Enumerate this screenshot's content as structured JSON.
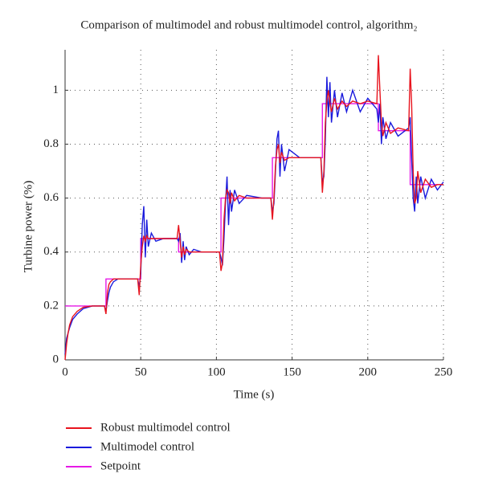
{
  "chart_data": {
    "type": "line",
    "title": "Comparison of multimodel and robust multimodel control, algorithm₂",
    "xlabel": "Time (s)",
    "ylabel": "Turbine power (%)",
    "xlim": [
      0,
      250
    ],
    "ylim": [
      0,
      1.15
    ],
    "xticks": [
      0,
      50,
      100,
      150,
      200,
      250
    ],
    "yticks": [
      0,
      0.2,
      0.4,
      0.6,
      0.8,
      1
    ],
    "grid": true,
    "series": [
      {
        "name": "Robust multimodel control",
        "color": "#e8141e",
        "x": [
          0,
          1,
          2,
          3,
          5,
          8,
          12,
          18,
          26,
          27,
          28,
          29,
          30,
          32,
          35,
          40,
          48,
          49,
          50,
          51,
          52,
          53,
          54,
          55,
          57,
          60,
          65,
          74,
          75,
          76,
          77,
          78,
          79,
          80,
          82,
          85,
          90,
          102,
          103,
          104,
          105,
          106,
          107,
          108,
          109,
          110,
          112,
          115,
          120,
          130,
          136,
          137,
          138,
          139,
          140,
          141,
          142,
          143,
          145,
          148,
          155,
          169,
          170,
          171,
          172,
          173,
          174,
          175,
          176,
          178,
          180,
          183,
          186,
          190,
          195,
          200,
          206,
          207,
          208,
          209,
          210,
          212,
          215,
          220,
          227,
          228,
          229,
          230,
          231,
          232,
          233,
          235,
          238,
          242,
          246,
          250
        ],
        "values": [
          0,
          0.06,
          0.1,
          0.13,
          0.16,
          0.18,
          0.195,
          0.2,
          0.2,
          0.17,
          0.25,
          0.28,
          0.29,
          0.3,
          0.3,
          0.3,
          0.3,
          0.24,
          0.35,
          0.42,
          0.46,
          0.44,
          0.46,
          0.45,
          0.45,
          0.45,
          0.45,
          0.45,
          0.5,
          0.44,
          0.38,
          0.42,
          0.39,
          0.41,
          0.4,
          0.4,
          0.4,
          0.4,
          0.33,
          0.36,
          0.52,
          0.6,
          0.63,
          0.62,
          0.58,
          0.62,
          0.59,
          0.61,
          0.6,
          0.6,
          0.6,
          0.52,
          0.6,
          0.72,
          0.78,
          0.8,
          0.73,
          0.77,
          0.74,
          0.75,
          0.75,
          0.75,
          0.62,
          0.7,
          0.88,
          0.96,
          1.0,
          0.95,
          0.92,
          0.97,
          0.93,
          0.96,
          0.94,
          0.96,
          0.95,
          0.96,
          0.95,
          1.13,
          1.0,
          0.88,
          0.83,
          0.88,
          0.84,
          0.86,
          0.85,
          1.08,
          0.95,
          0.7,
          0.58,
          0.6,
          0.7,
          0.62,
          0.67,
          0.64,
          0.65,
          0.65
        ]
      },
      {
        "name": "Multimodel control",
        "color": "#1a1adc",
        "x": [
          0,
          1,
          2,
          3,
          5,
          8,
          12,
          18,
          26,
          27,
          28,
          29,
          30,
          32,
          35,
          40,
          48,
          49,
          50,
          51,
          52,
          53,
          54,
          55,
          57,
          60,
          65,
          74,
          75,
          76,
          77,
          78,
          79,
          80,
          82,
          85,
          90,
          102,
          103,
          104,
          105,
          106,
          107,
          108,
          109,
          110,
          112,
          115,
          120,
          130,
          136,
          137,
          138,
          139,
          140,
          141,
          142,
          143,
          145,
          148,
          155,
          169,
          170,
          171,
          172,
          173,
          174,
          175,
          176,
          178,
          180,
          183,
          186,
          190,
          195,
          200,
          206,
          207,
          208,
          209,
          210,
          212,
          215,
          220,
          227,
          228,
          229,
          230,
          231,
          232,
          233,
          235,
          238,
          242,
          246,
          250
        ],
        "values": [
          0.02,
          0.08,
          0.1,
          0.12,
          0.15,
          0.17,
          0.19,
          0.2,
          0.2,
          0.18,
          0.22,
          0.25,
          0.27,
          0.29,
          0.3,
          0.3,
          0.3,
          0.27,
          0.32,
          0.5,
          0.57,
          0.38,
          0.52,
          0.42,
          0.47,
          0.44,
          0.45,
          0.45,
          0.44,
          0.47,
          0.36,
          0.44,
          0.37,
          0.42,
          0.39,
          0.41,
          0.4,
          0.4,
          0.38,
          0.35,
          0.45,
          0.58,
          0.68,
          0.5,
          0.63,
          0.55,
          0.63,
          0.58,
          0.61,
          0.6,
          0.6,
          0.55,
          0.58,
          0.7,
          0.82,
          0.85,
          0.68,
          0.8,
          0.7,
          0.78,
          0.75,
          0.75,
          0.66,
          0.68,
          0.82,
          1.05,
          0.9,
          1.03,
          0.88,
          1.0,
          0.9,
          0.99,
          0.92,
          1.0,
          0.92,
          0.97,
          0.93,
          0.88,
          0.95,
          0.8,
          0.9,
          0.82,
          0.88,
          0.83,
          0.86,
          0.9,
          0.75,
          0.6,
          0.55,
          0.68,
          0.58,
          0.68,
          0.6,
          0.67,
          0.63,
          0.66
        ]
      },
      {
        "name": "Setpoint",
        "color": "#e619e6",
        "x": [
          0,
          27,
          27,
          50,
          50,
          75,
          75,
          103,
          103,
          137,
          137,
          170,
          170,
          207,
          207,
          228,
          228,
          250
        ],
        "values": [
          0.2,
          0.2,
          0.3,
          0.3,
          0.45,
          0.45,
          0.4,
          0.4,
          0.6,
          0.6,
          0.75,
          0.75,
          0.95,
          0.95,
          0.85,
          0.85,
          0.65,
          0.65
        ]
      }
    ]
  }
}
